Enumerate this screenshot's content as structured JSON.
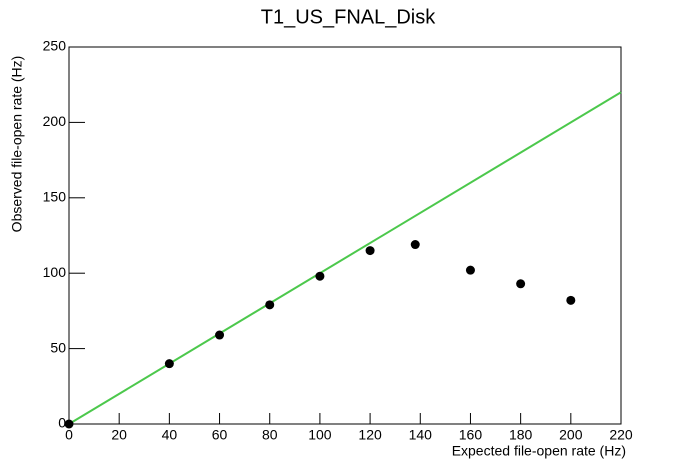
{
  "chart_data": {
    "type": "scatter",
    "title": "T1_US_FNAL_Disk",
    "x_label": "Expected file-open rate (Hz)",
    "y_label": "Observed file-open rate (Hz)",
    "x": [
      0,
      40,
      60,
      80,
      100,
      120,
      138,
      160,
      180,
      200
    ],
    "values": [
      0,
      40,
      59,
      79,
      98,
      115,
      119,
      102,
      93,
      82
    ],
    "color": "#000000",
    "line": {
      "x": [
        0,
        220
      ],
      "y": [
        0,
        220
      ],
      "color": "#4cc84c"
    },
    "xlim": [
      0,
      220
    ],
    "ylim": [
      0,
      250
    ],
    "xticks": [
      0,
      20,
      40,
      60,
      80,
      100,
      120,
      140,
      160,
      180,
      200,
      220
    ],
    "yticks": [
      0,
      50,
      100,
      150,
      200,
      250
    ]
  }
}
